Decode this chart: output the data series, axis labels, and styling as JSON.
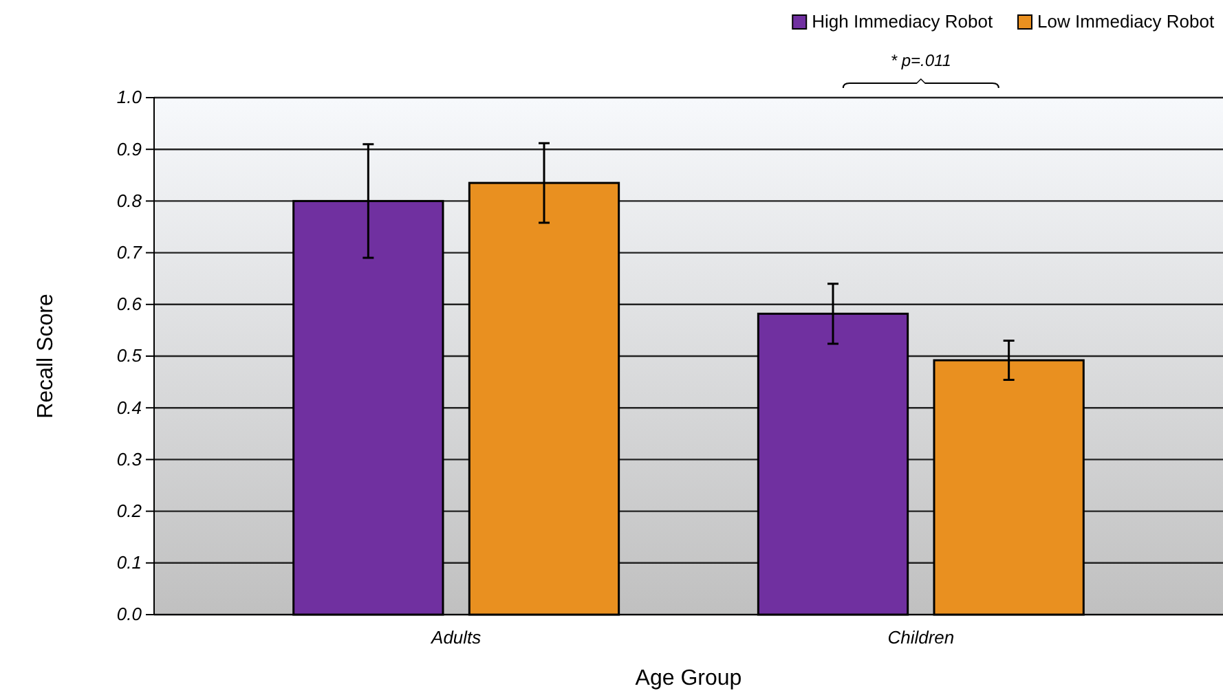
{
  "chart_data": {
    "type": "bar",
    "xlabel": "Age Group",
    "ylabel": "Recall Score",
    "categories": [
      "Adults",
      "Children"
    ],
    "series": [
      {
        "name": "High Immediacy Robot",
        "color": "#7030a0",
        "values": [
          0.8,
          0.582
        ],
        "errors": [
          0.11,
          0.058
        ]
      },
      {
        "name": "Low Immediacy Robot",
        "color": "#e99020",
        "values": [
          0.835,
          0.492
        ],
        "errors": [
          0.077,
          0.038
        ]
      }
    ],
    "ylim": [
      0,
      1
    ],
    "yticks": [
      {
        "value": 0,
        "label": "0.0"
      },
      {
        "value": 0.1,
        "label": "0.1"
      },
      {
        "value": 0.2,
        "label": "0.2"
      },
      {
        "value": 0.3,
        "label": "0.3"
      },
      {
        "value": 0.4,
        "label": "0.4"
      },
      {
        "value": 0.5,
        "label": "0.5"
      },
      {
        "value": 0.6,
        "label": "0.6"
      },
      {
        "value": 0.7,
        "label": "0.7"
      },
      {
        "value": 0.8,
        "label": "0.8"
      },
      {
        "value": 0.9,
        "label": "0.9"
      },
      {
        "value": 1.0,
        "label": "1.0"
      }
    ],
    "grid": "y",
    "legend": "top right",
    "annotations": [
      "* p=.011"
    ]
  }
}
